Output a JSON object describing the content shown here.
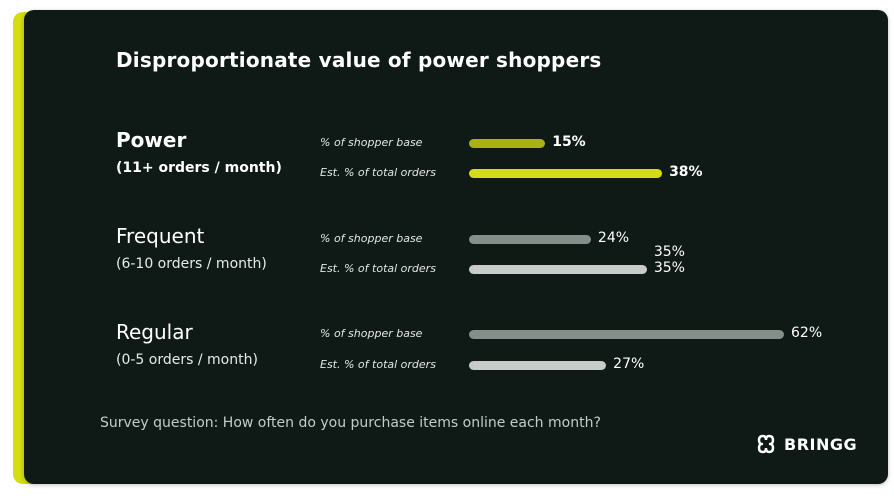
{
  "chart_data": {
    "type": "bar",
    "orientation": "horizontal",
    "title": "Disproportionate value of power shoppers",
    "xlim": [
      0,
      100
    ],
    "grid": false,
    "groups": [
      {
        "name": "Power",
        "subtitle": "(11+ orders / month)",
        "emphasis": true,
        "bars": [
          {
            "metric": "% of shopper base",
            "value": 15,
            "label": "15%",
            "color": "#aab20f"
          },
          {
            "metric": "Est. % of total orders",
            "value": 38,
            "label": "38%",
            "color": "#d4dc12"
          }
        ]
      },
      {
        "name": "Frequent",
        "subtitle": "(6-10 orders / month)",
        "emphasis": false,
        "extra_label": "35%",
        "bars": [
          {
            "metric": "% of shopper base",
            "value": 24,
            "label": "24%",
            "color": "#838f88"
          },
          {
            "metric": "Est. % of total orders",
            "value": 35,
            "label": "35%",
            "color": "#c8ccc9"
          }
        ]
      },
      {
        "name": "Regular",
        "subtitle": "(0-5 orders / month)",
        "emphasis": false,
        "bars": [
          {
            "metric": "% of shopper base",
            "value": 62,
            "label": "62%",
            "color": "#838f88"
          },
          {
            "metric": "Est. % of total orders",
            "value": 27,
            "label": "27%",
            "color": "#c8ccc9"
          }
        ]
      }
    ],
    "footnote": "Survey question: How often do you purchase items online each month?"
  },
  "brand": {
    "logo_text": "BRINGG",
    "accent_color": "#d4dc12",
    "background_color": "#0f1916"
  }
}
